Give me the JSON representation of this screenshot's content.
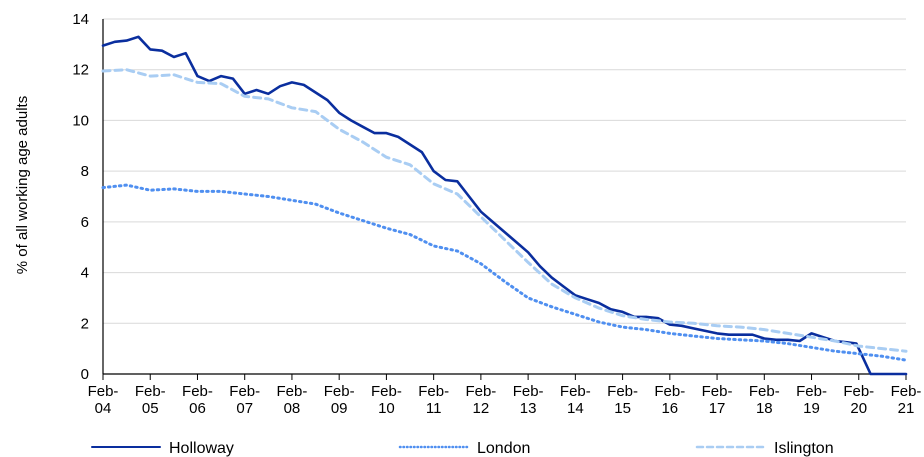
{
  "chart_data": {
    "type": "line",
    "title": "",
    "xlabel": "",
    "ylabel": "% of all working age adults",
    "ylim": [
      0,
      14
    ],
    "yticks": [
      "0",
      "2",
      "4",
      "6",
      "8",
      "10",
      "12",
      "14"
    ],
    "xlim": [
      2004,
      2021
    ],
    "xticks": [
      [
        "Feb-",
        "04"
      ],
      [
        "Feb-",
        "05"
      ],
      [
        "Feb-",
        "06"
      ],
      [
        "Feb-",
        "07"
      ],
      [
        "Feb-",
        "08"
      ],
      [
        "Feb-",
        "09"
      ],
      [
        "Feb-",
        "10"
      ],
      [
        "Feb-",
        "11"
      ],
      [
        "Feb-",
        "12"
      ],
      [
        "Feb-",
        "13"
      ],
      [
        "Feb-",
        "14"
      ],
      [
        "Feb-",
        "15"
      ],
      [
        "Feb-",
        "16"
      ],
      [
        "Feb-",
        "17"
      ],
      [
        "Feb-",
        "18"
      ],
      [
        "Feb-",
        "19"
      ],
      [
        "Feb-",
        "20"
      ],
      [
        "Feb-",
        "21"
      ]
    ],
    "grid": "horizontal",
    "legend_position": "bottom",
    "series": [
      {
        "name": "Holloway",
        "color": "#0a2e9e",
        "style": "solid",
        "x": [
          2004.0,
          2004.25,
          2004.5,
          2004.75,
          2005.0,
          2005.25,
          2005.5,
          2005.75,
          2006.0,
          2006.25,
          2006.5,
          2006.75,
          2007.0,
          2007.25,
          2007.5,
          2007.75,
          2008.0,
          2008.25,
          2008.5,
          2008.75,
          2009.0,
          2009.25,
          2009.5,
          2009.75,
          2010.0,
          2010.25,
          2010.5,
          2010.75,
          2011.0,
          2011.25,
          2011.5,
          2011.75,
          2012.0,
          2012.25,
          2012.5,
          2012.75,
          2013.0,
          2013.25,
          2013.5,
          2013.75,
          2014.0,
          2014.25,
          2014.5,
          2014.75,
          2015.0,
          2015.25,
          2015.5,
          2015.75,
          2016.0,
          2016.25,
          2016.5,
          2016.75,
          2017.0,
          2017.25,
          2017.5,
          2017.75,
          2018.0,
          2018.25,
          2018.5,
          2018.75,
          2019.0,
          2019.25,
          2019.5,
          2019.75,
          2019.95,
          2020.25,
          2020.5,
          2020.75,
          2021.0
        ],
        "y": [
          12.95,
          13.1,
          13.15,
          13.3,
          12.8,
          12.75,
          12.5,
          12.65,
          11.75,
          11.55,
          11.75,
          11.65,
          11.05,
          11.2,
          11.05,
          11.35,
          11.5,
          11.4,
          11.1,
          10.8,
          10.3,
          10.0,
          9.75,
          9.5,
          9.5,
          9.35,
          9.05,
          8.75,
          8.0,
          7.65,
          7.6,
          7.0,
          6.4,
          6.0,
          5.6,
          5.2,
          4.8,
          4.25,
          3.8,
          3.45,
          3.1,
          2.95,
          2.8,
          2.55,
          2.45,
          2.25,
          2.25,
          2.2,
          1.95,
          1.9,
          1.8,
          1.7,
          1.6,
          1.55,
          1.55,
          1.55,
          1.4,
          1.35,
          1.35,
          1.3,
          1.6,
          1.45,
          1.3,
          1.25,
          1.2,
          0.0,
          0.0,
          0.0,
          0.0
        ]
      },
      {
        "name": "London",
        "color": "#4f8ff0",
        "style": "dotted",
        "x": [
          2004.0,
          2004.5,
          2005.0,
          2005.5,
          2006.0,
          2006.5,
          2007.0,
          2007.5,
          2008.0,
          2008.5,
          2009.0,
          2009.5,
          2010.0,
          2010.5,
          2011.0,
          2011.5,
          2012.0,
          2012.5,
          2013.0,
          2013.5,
          2014.0,
          2014.5,
          2015.0,
          2015.5,
          2016.0,
          2016.5,
          2017.0,
          2017.5,
          2018.0,
          2018.5,
          2019.0,
          2019.5,
          2020.0,
          2020.5,
          2021.0
        ],
        "y": [
          7.35,
          7.45,
          7.25,
          7.3,
          7.2,
          7.2,
          7.1,
          7.0,
          6.85,
          6.7,
          6.35,
          6.05,
          5.75,
          5.5,
          5.05,
          4.85,
          4.35,
          3.65,
          3.0,
          2.65,
          2.35,
          2.05,
          1.85,
          1.75,
          1.6,
          1.5,
          1.4,
          1.35,
          1.3,
          1.2,
          1.05,
          0.9,
          0.8,
          0.7,
          0.55
        ]
      },
      {
        "name": "Islington",
        "color": "#a9cdf3",
        "style": "dashed",
        "x": [
          2004.0,
          2004.5,
          2005.0,
          2005.5,
          2006.0,
          2006.5,
          2007.0,
          2007.5,
          2008.0,
          2008.5,
          2009.0,
          2009.5,
          2010.0,
          2010.5,
          2011.0,
          2011.5,
          2012.0,
          2012.5,
          2013.0,
          2013.5,
          2014.0,
          2014.5,
          2015.0,
          2015.5,
          2016.0,
          2016.5,
          2017.0,
          2017.5,
          2018.0,
          2018.5,
          2019.0,
          2019.5,
          2020.0,
          2020.5,
          2021.0
        ],
        "y": [
          11.95,
          12.0,
          11.75,
          11.8,
          11.5,
          11.45,
          10.95,
          10.85,
          10.5,
          10.35,
          9.65,
          9.15,
          8.55,
          8.25,
          7.5,
          7.1,
          6.2,
          5.3,
          4.4,
          3.55,
          3.0,
          2.6,
          2.3,
          2.15,
          2.05,
          2.0,
          1.9,
          1.85,
          1.75,
          1.6,
          1.45,
          1.3,
          1.1,
          1.0,
          0.9
        ]
      }
    ]
  }
}
